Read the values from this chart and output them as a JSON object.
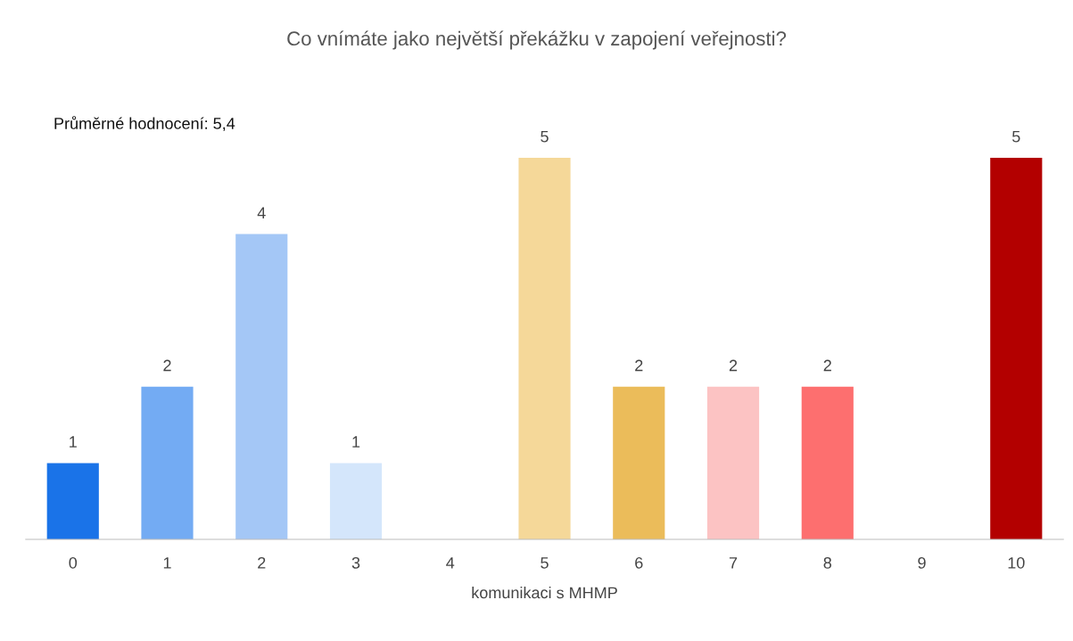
{
  "chart_data": {
    "type": "bar",
    "title": "Co vnímáte jako největší překážku v zapojení veřejnosti?",
    "xlabel": "komunikaci s MHMP",
    "categories": [
      "0",
      "1",
      "2",
      "3",
      "4",
      "5",
      "6",
      "7",
      "8",
      "9",
      "10"
    ],
    "values": [
      1,
      2,
      4,
      1,
      0,
      5,
      2,
      2,
      2,
      0,
      5
    ],
    "value_labels": [
      "1",
      "2",
      "4",
      "1",
      null,
      "5",
      "2",
      "2",
      "2",
      null,
      "5"
    ],
    "colors": [
      "#1a73e8",
      "#73abf3",
      "#a4c7f6",
      "#d4e6fb",
      "#cccccc",
      "#f5d899",
      "#ebbc5a",
      "#fcc3c3",
      "#fd6f6f",
      "#cccccc",
      "#b30000"
    ],
    "annotations": [
      "Průměrné hodnocení: 5,4"
    ],
    "grid": false,
    "legend": false
  }
}
